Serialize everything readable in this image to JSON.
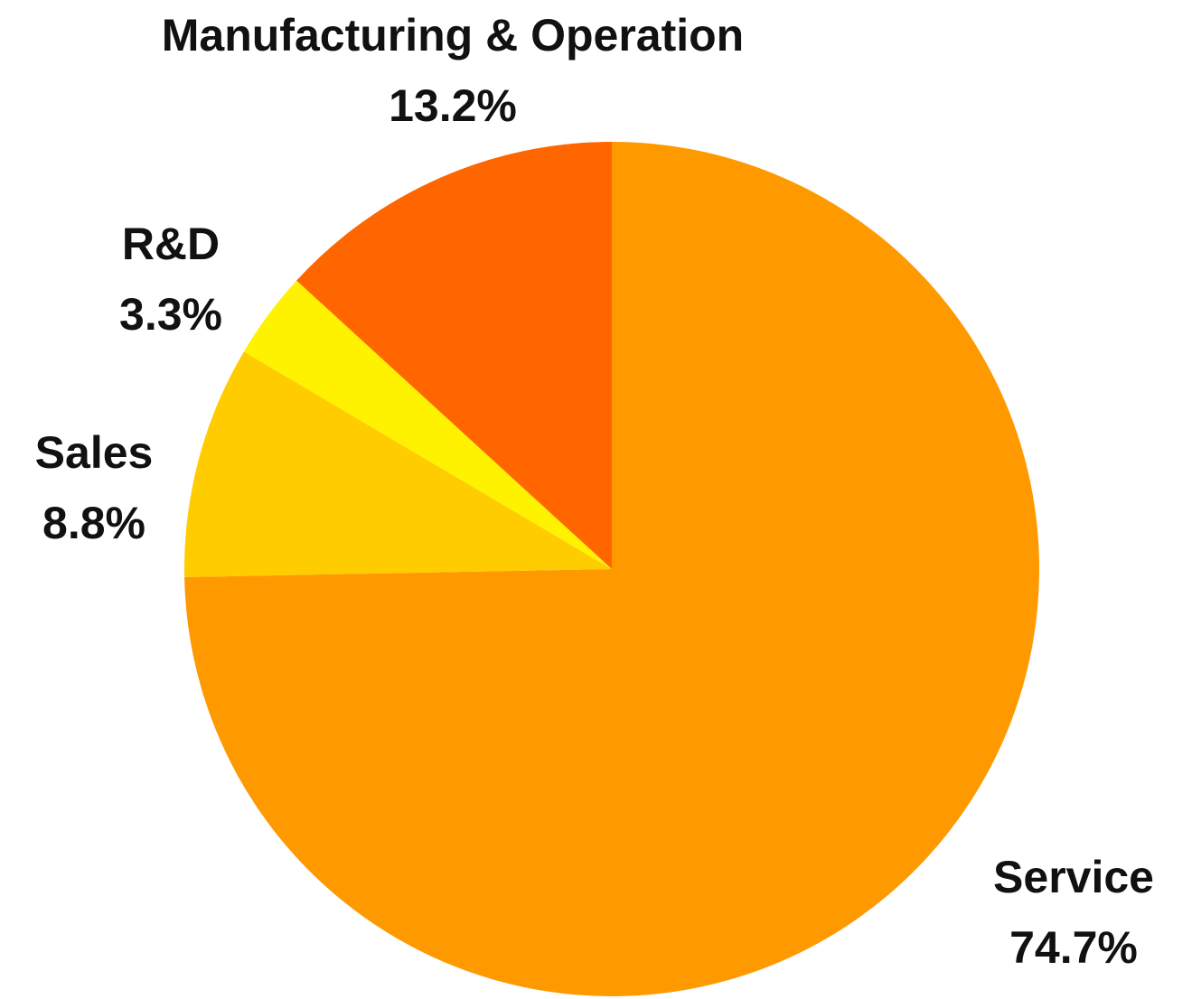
{
  "chart_data": {
    "type": "pie",
    "start": "12 o'clock",
    "direction": "clockwise",
    "slices": [
      {
        "name": "Service",
        "value": 74.7,
        "value_label": "74.7%",
        "color": "#FF9900"
      },
      {
        "name": "Sales",
        "value": 8.8,
        "value_label": "8.8%",
        "color": "#FFCC00"
      },
      {
        "name": "R&D",
        "value": 3.3,
        "value_label": "3.3%",
        "color": "#FFF200"
      },
      {
        "name": "Manufacturing & Operation",
        "value": 13.2,
        "value_label": "13.2%",
        "color": "#FF6600"
      }
    ],
    "legend": "none (labels on chart)"
  }
}
